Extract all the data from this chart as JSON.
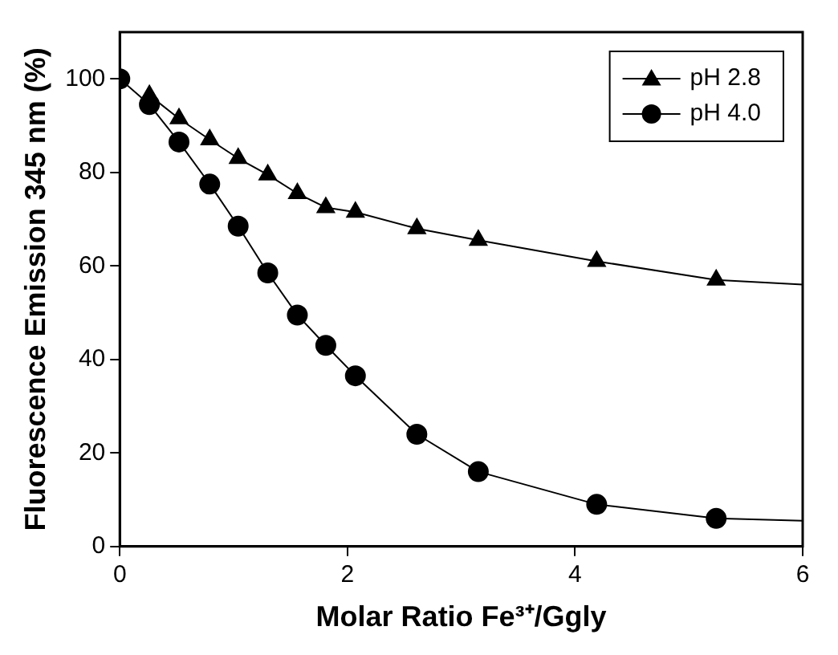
{
  "chart_data": {
    "type": "line",
    "xlabel": "Molar Ratio Fe³⁺/Ggly",
    "ylabel": "Fluorescence Emission 345 nm (%)",
    "xlim": [
      0,
      6
    ],
    "xticks": [
      0,
      2,
      4,
      6
    ],
    "ylim": [
      0,
      110
    ],
    "yticks": [
      0,
      20,
      40,
      60,
      80,
      100
    ],
    "grid": false,
    "legend": "top right",
    "line_style": "solid",
    "series": [
      {
        "name": "pH 2.8",
        "color": "#000000",
        "marker": "triangle",
        "x": [
          0.26,
          0.52,
          0.79,
          1.04,
          1.3,
          1.56,
          1.81,
          2.07,
          2.61,
          3.15,
          4.19,
          5.24
        ],
        "values": [
          96.5,
          91.5,
          87,
          83,
          79.5,
          75.5,
          72.5,
          71.5,
          68,
          65.5,
          61,
          57
        ]
      },
      {
        "name": "pH 4.0",
        "color": "#000000",
        "marker": "circle",
        "x": [
          0,
          0.26,
          0.52,
          0.79,
          1.04,
          1.3,
          1.56,
          1.81,
          2.07,
          2.61,
          3.15,
          4.19,
          5.24
        ],
        "values": [
          100,
          94.5,
          86.5,
          77.5,
          68.5,
          58.5,
          49.5,
          43,
          36.5,
          24,
          16,
          9,
          6
        ]
      },
      {
        "color": "#000000",
        "marker": "none",
        "x": [
          5.24,
          6
        ],
        "values": [
          57,
          56
        ]
      },
      {
        "color": "#000000",
        "marker": "none",
        "x": [
          5.24,
          6
        ],
        "values": [
          6,
          5.5
        ]
      }
    ]
  }
}
